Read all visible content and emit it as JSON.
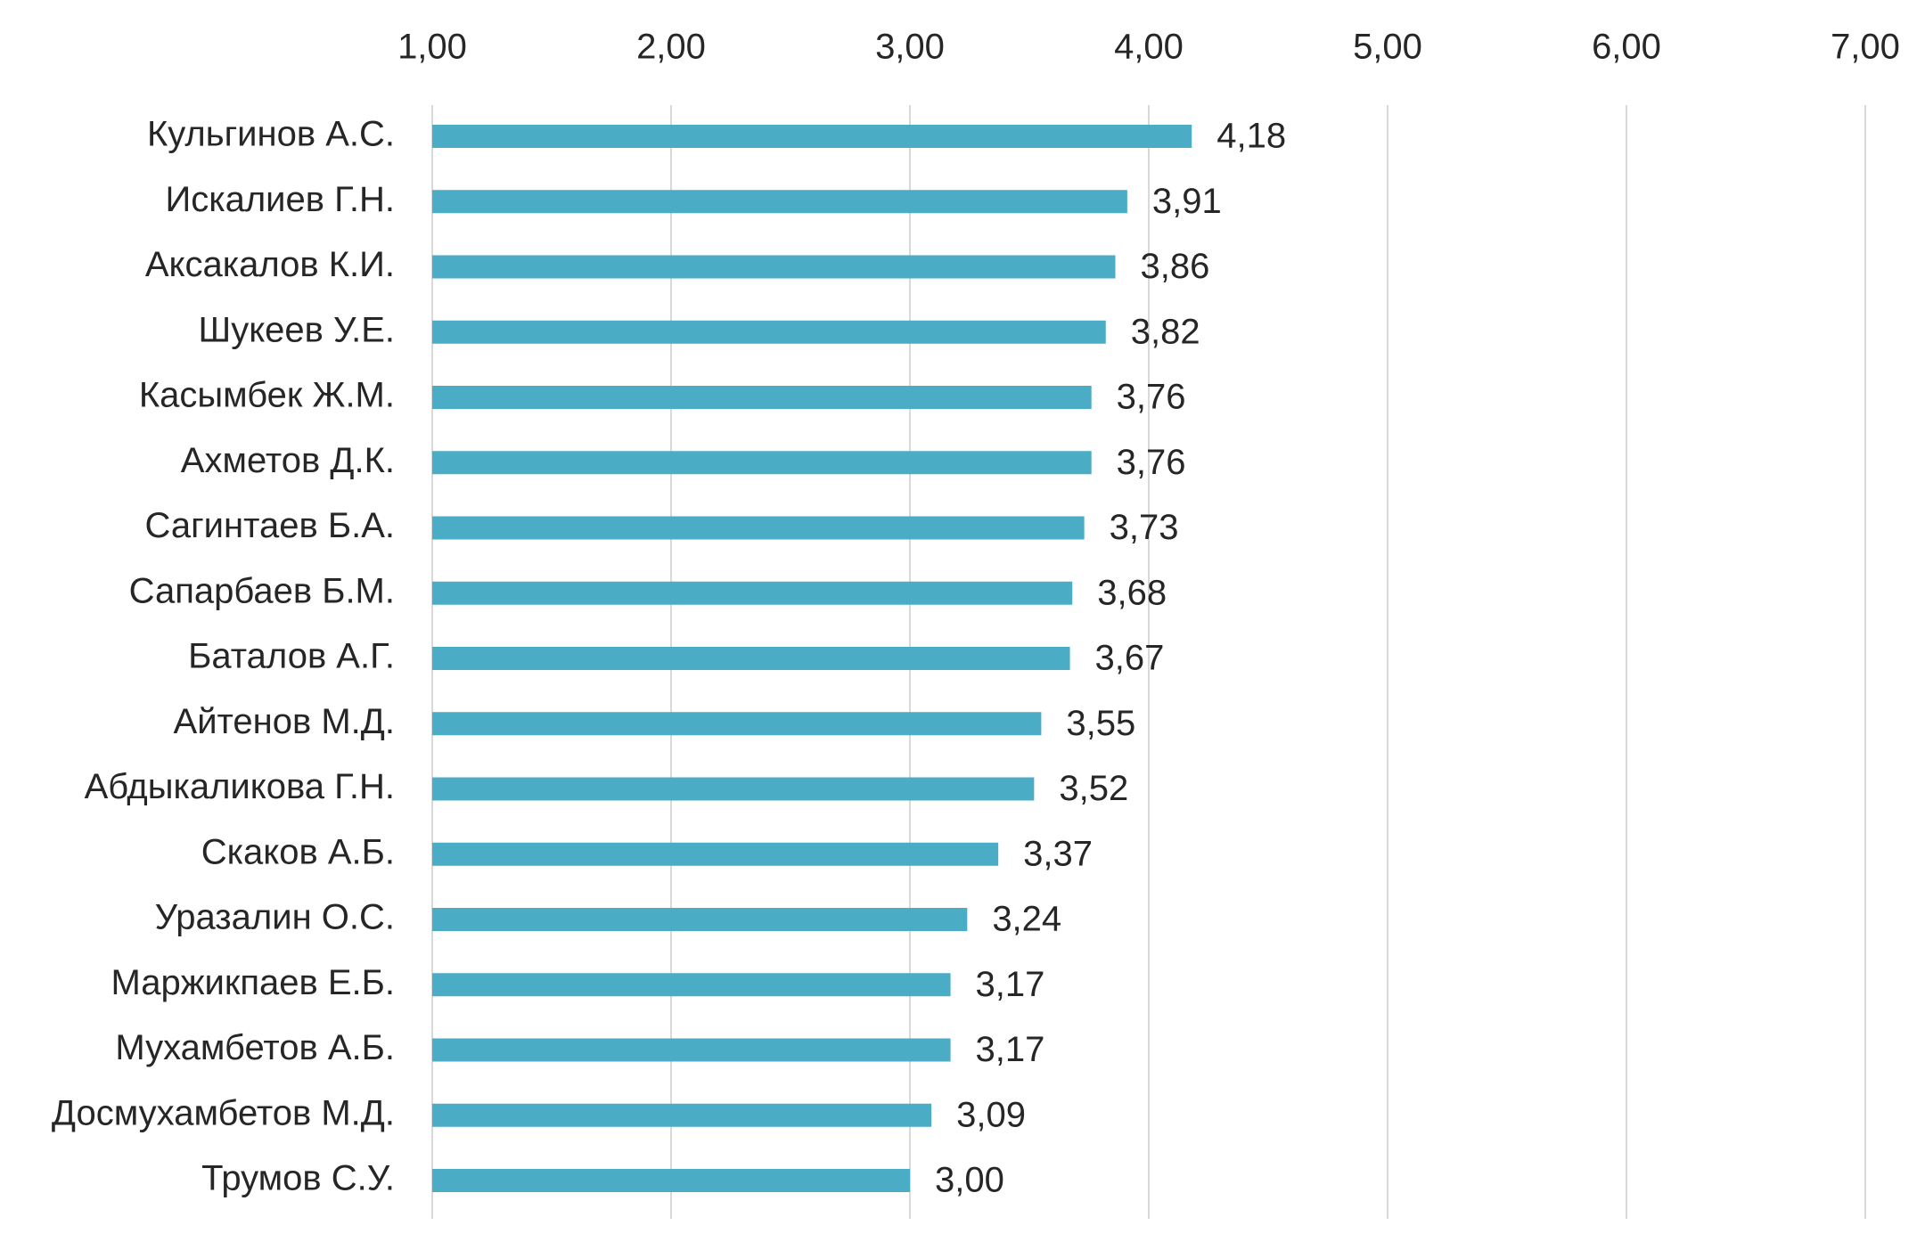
{
  "chart_data": {
    "type": "bar",
    "orientation": "horizontal",
    "title": "",
    "xlabel": "",
    "ylabel": "",
    "xlim": [
      1,
      7
    ],
    "x_ticks": [
      1,
      2,
      3,
      4,
      5,
      6,
      7
    ],
    "x_tick_labels": [
      "1,00",
      "2,00",
      "3,00",
      "4,00",
      "5,00",
      "6,00",
      "7,00"
    ],
    "x_axis_position": "top",
    "grid": true,
    "legend": "none",
    "bar_color": "#4bacc6",
    "categories": [
      "Кульгинов А.С.",
      "Искалиев Г.Н.",
      "Аксакалов К.И.",
      "Шукеев У.Е.",
      "Касымбек Ж.М.",
      "Ахметов Д.К.",
      "Сагинтаев Б.А.",
      "Сапарбаев Б.М.",
      "Баталов А.Г.",
      "Айтенов М.Д.",
      "Абдыкаликова Г.Н.",
      "Скаков А.Б.",
      "Уразалин О.С.",
      "Маржикпаев Е.Б.",
      "Мухамбетов А.Б.",
      "Досмухамбетов М.Д.",
      "Трумов С.У."
    ],
    "values": [
      4.18,
      3.91,
      3.86,
      3.82,
      3.76,
      3.76,
      3.73,
      3.68,
      3.67,
      3.55,
      3.52,
      3.37,
      3.24,
      3.17,
      3.17,
      3.09,
      3.0
    ],
    "value_labels": [
      "4,18",
      "3,91",
      "3,86",
      "3,82",
      "3,76",
      "3,76",
      "3,73",
      "3,68",
      "3,67",
      "3,55",
      "3,52",
      "3,37",
      "3,24",
      "3,17",
      "3,17",
      "3,09",
      "3,00"
    ]
  }
}
